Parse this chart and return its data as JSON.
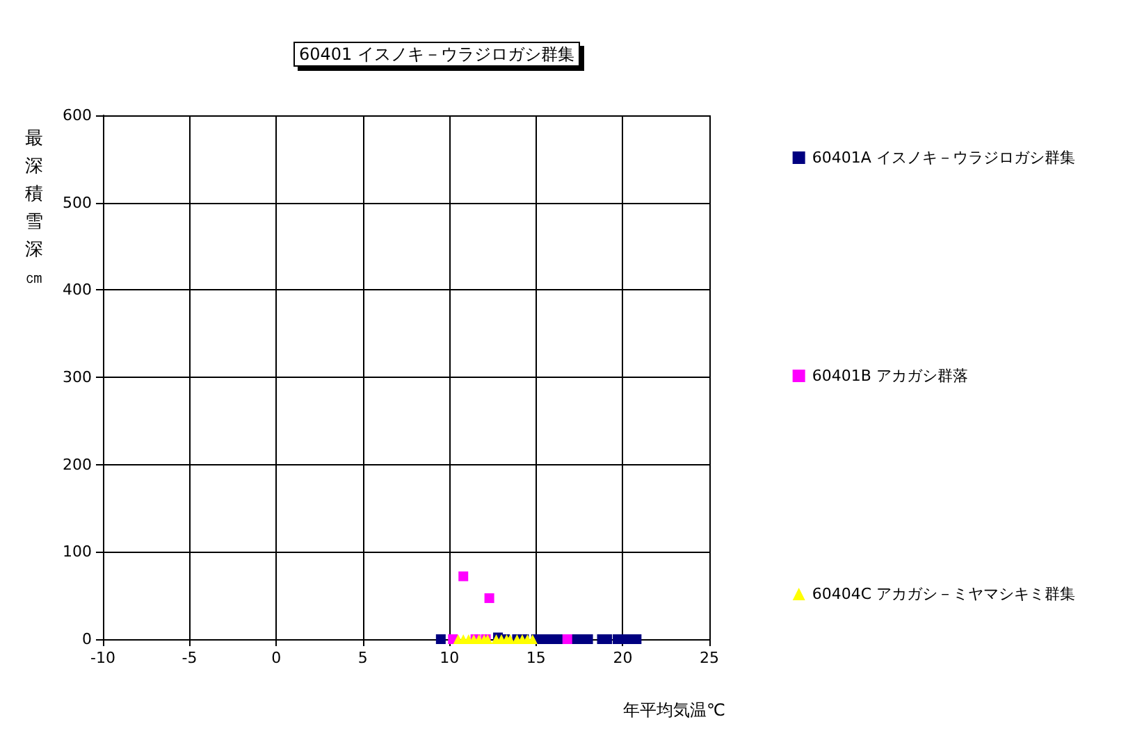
{
  "chart_data": {
    "type": "scatter",
    "title": "60401 イスノキ－ウラジロガシ群集",
    "xlabel": "年平均気温℃",
    "ylabel": "最深積雪深㎝",
    "xlim": [
      -10,
      25
    ],
    "xticks": [
      -10,
      -5,
      0,
      5,
      10,
      15,
      20,
      25
    ],
    "ylim": [
      0,
      600
    ],
    "yticks": [
      0,
      100,
      200,
      300,
      400,
      500,
      600
    ],
    "grid": true,
    "legend": "right",
    "series": [
      {
        "name": "60401A イスノキ－ウラジロガシ群集",
        "color": "#000080",
        "marker": "square",
        "x": [
          9.5,
          12.8,
          13.2,
          13.9,
          14.3,
          15.0,
          15.3,
          15.6,
          15.9,
          16.2,
          16.5,
          17.1,
          17.4,
          17.7,
          18.0,
          18.8,
          19.1,
          19.7,
          20.0,
          20.3,
          20.8
        ],
        "values": [
          0,
          2,
          0,
          0,
          0,
          0,
          0,
          0,
          0,
          0,
          0,
          0,
          0,
          0,
          0,
          0,
          0,
          0,
          0,
          0,
          0
        ]
      },
      {
        "name": "60401B アカガシ群落",
        "color": "#ff00ff",
        "marker": "square",
        "x": [
          10.2,
          10.8,
          11.5,
          12.1,
          12.3,
          16.8
        ],
        "values": [
          0,
          72,
          0,
          0,
          47,
          0
        ]
      },
      {
        "name": "60404C アカガシ－ミヤマシキミ群集",
        "color": "#ffff00",
        "marker": "triangle",
        "x": [
          10.5,
          10.8,
          11.1,
          11.4,
          11.7,
          12.0,
          12.2,
          12.7,
          13.0,
          13.3,
          13.5,
          13.9,
          14.2,
          14.5,
          14.8
        ],
        "values": [
          0,
          0,
          0,
          0,
          0,
          0,
          0,
          0,
          0,
          0,
          0,
          0,
          0,
          0,
          0
        ]
      }
    ]
  }
}
